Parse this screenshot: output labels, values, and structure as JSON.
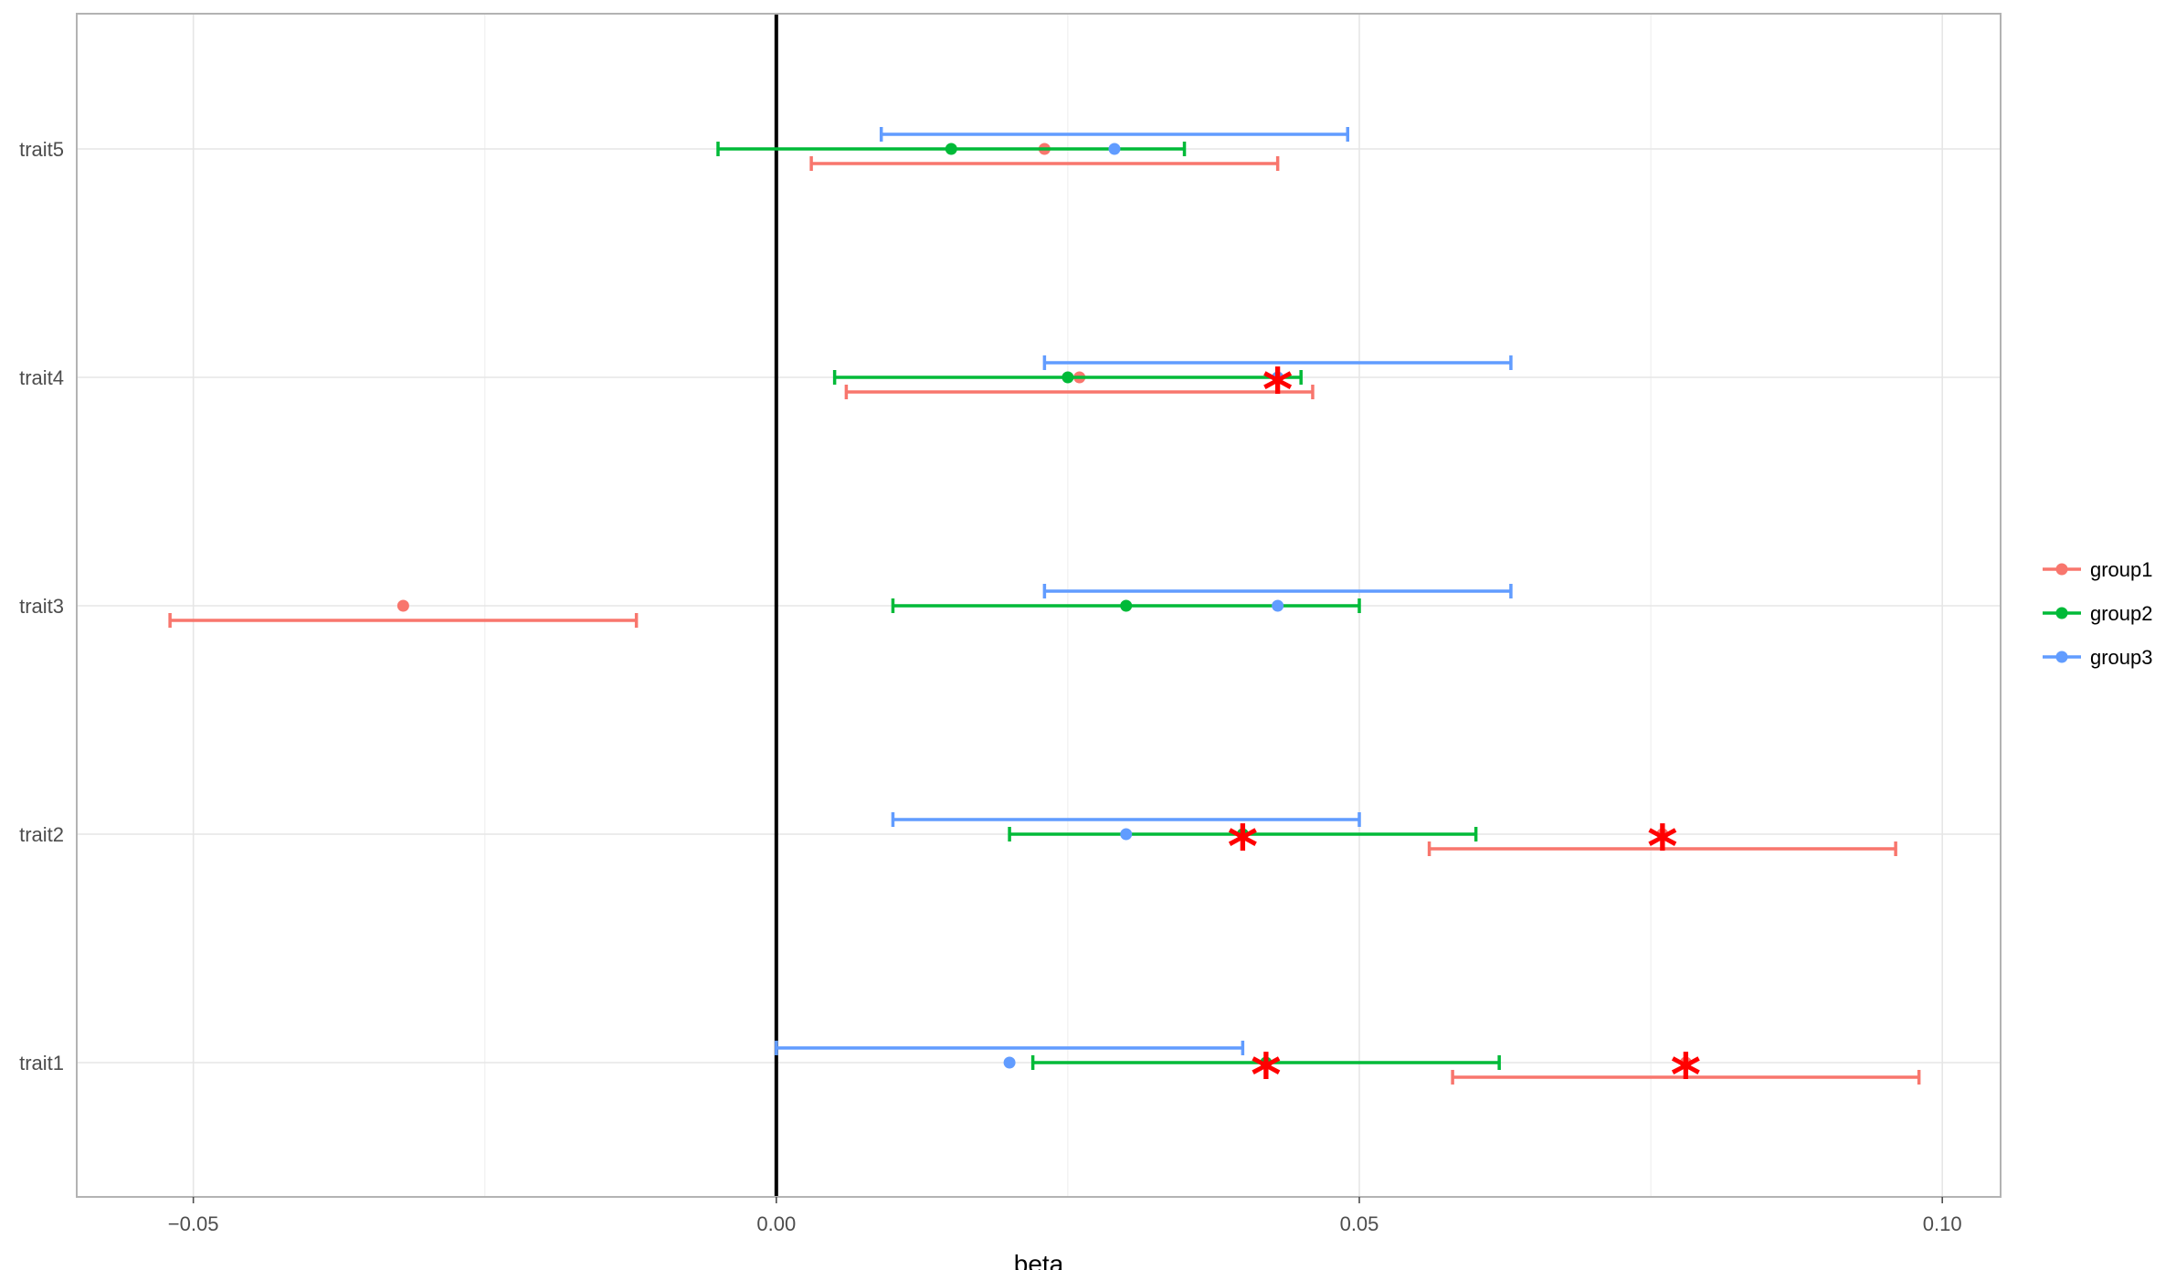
{
  "chart_data": {
    "type": "scatter",
    "subtype": "forest-plot (point estimate with horizontal error bars)",
    "title": "",
    "xlabel": "beta",
    "ylabel": "",
    "xlim": [
      -0.06,
      0.105
    ],
    "x_ticks": [
      -0.05,
      0.0,
      0.05,
      0.1
    ],
    "x_tick_labels": [
      "−0.05",
      "0.00",
      "0.05",
      "0.10"
    ],
    "vline_at": 0,
    "grid": true,
    "legend_position": "right",
    "categories": [
      "trait1",
      "trait2",
      "trait3",
      "trait4",
      "trait5"
    ],
    "significance_marker": "*",
    "significance_color": "#ff0000",
    "series": [
      {
        "name": "group1",
        "color": "#f8766d",
        "offset": -1,
        "points": [
          {
            "category": "trait1",
            "beta": 0.078,
            "lower": 0.058,
            "upper": 0.098,
            "significant": true
          },
          {
            "category": "trait2",
            "beta": 0.076,
            "lower": 0.056,
            "upper": 0.096,
            "significant": true
          },
          {
            "category": "trait3",
            "beta": -0.032,
            "lower": -0.052,
            "upper": -0.012,
            "significant": false
          },
          {
            "category": "trait4",
            "beta": 0.026,
            "lower": 0.006,
            "upper": 0.046,
            "significant": false
          },
          {
            "category": "trait5",
            "beta": 0.023,
            "lower": 0.003,
            "upper": 0.043,
            "significant": false
          }
        ]
      },
      {
        "name": "group2",
        "color": "#00ba38",
        "offset": 0,
        "points": [
          {
            "category": "trait1",
            "beta": 0.042,
            "lower": 0.022,
            "upper": 0.062,
            "significant": true
          },
          {
            "category": "trait2",
            "beta": 0.04,
            "lower": 0.02,
            "upper": 0.06,
            "significant": true
          },
          {
            "category": "trait3",
            "beta": 0.03,
            "lower": 0.01,
            "upper": 0.05,
            "significant": false
          },
          {
            "category": "trait4",
            "beta": 0.025,
            "lower": 0.005,
            "upper": 0.045,
            "significant": false
          },
          {
            "category": "trait5",
            "beta": 0.015,
            "lower": -0.005,
            "upper": 0.035,
            "significant": false
          }
        ]
      },
      {
        "name": "group3",
        "color": "#619cff",
        "offset": 1,
        "points": [
          {
            "category": "trait1",
            "beta": 0.02,
            "lower": 0.0,
            "upper": 0.04,
            "significant": false
          },
          {
            "category": "trait2",
            "beta": 0.03,
            "lower": 0.01,
            "upper": 0.05,
            "significant": false
          },
          {
            "category": "trait3",
            "beta": 0.043,
            "lower": 0.023,
            "upper": 0.063,
            "significant": false
          },
          {
            "category": "trait4",
            "beta": 0.043,
            "lower": 0.023,
            "upper": 0.063,
            "significant": true
          },
          {
            "category": "trait5",
            "beta": 0.029,
            "lower": 0.009,
            "upper": 0.049,
            "significant": false
          }
        ]
      }
    ]
  }
}
